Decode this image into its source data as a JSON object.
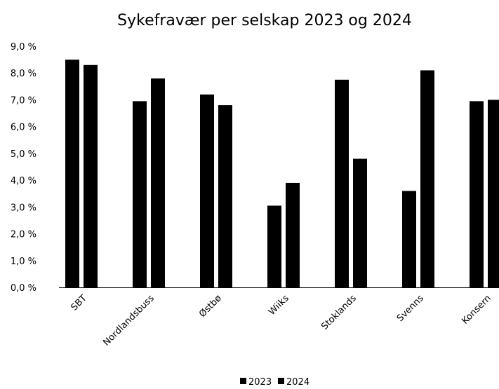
{
  "chart_data": {
    "type": "bar",
    "title": "Sykefravær per selskap 2023 og 2024",
    "categories": [
      "SBT",
      "Nordlandsbuss",
      "Østbø",
      "Wiiks",
      "Stoklands",
      "Svenns",
      "Konsern"
    ],
    "series": [
      {
        "name": "2023",
        "values": [
          8.5,
          6.95,
          7.2,
          3.05,
          7.75,
          3.6,
          6.95
        ]
      },
      {
        "name": "2024",
        "values": [
          8.3,
          7.8,
          6.8,
          3.9,
          4.8,
          8.1,
          7.0
        ]
      }
    ],
    "ylim": [
      0,
      9
    ],
    "y_ticks": [
      "0,0 %",
      "1,0 %",
      "2,0 %",
      "3,0 %",
      "4,0 %",
      "5,0 %",
      "6,0 %",
      "7,0 %",
      "8,0 %",
      "9,0 %"
    ],
    "xlabel": "",
    "ylabel": "",
    "grid": false,
    "legend_position": "bottom",
    "colors": {
      "series": [
        "#000000",
        "#000000"
      ],
      "axis": "#000000",
      "background": "#ffffff"
    }
  }
}
